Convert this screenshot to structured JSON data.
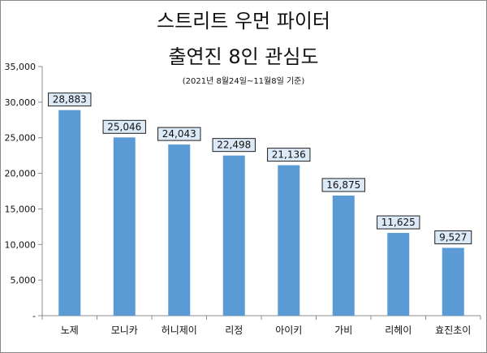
{
  "chart_data": {
    "type": "bar",
    "title_line1": "스트리트 우먼 파이터",
    "title_line2": "출연진 8인 관심도",
    "subtitle": "(2021년 8월24일~11월8일 기준)",
    "xlabel": "",
    "ylabel": "",
    "categories": [
      "노제",
      "모니카",
      "허니제이",
      "리정",
      "아이키",
      "가비",
      "리헤이",
      "효진초이"
    ],
    "values": [
      28883,
      25046,
      24043,
      22498,
      21136,
      16875,
      11625,
      9527
    ],
    "value_labels": [
      "28,883",
      "25,046",
      "24,043",
      "22,498",
      "21,136",
      "16,875",
      "11,625",
      "9,527"
    ],
    "ylim": [
      0,
      35000
    ],
    "yticks": [
      0,
      5000,
      10000,
      15000,
      20000,
      25000,
      30000,
      35000
    ],
    "ytick_labels": [
      "-",
      "5,000",
      "10,000",
      "15,000",
      "20,000",
      "25,000",
      "30,000",
      "35,000"
    ],
    "grid": false,
    "legend": "none",
    "colors": {
      "bar": "#5b9bd5",
      "label_box_fill": "#dce9f6",
      "label_box_border": "#1f1f1f",
      "axis": "#8c8c8c"
    }
  }
}
